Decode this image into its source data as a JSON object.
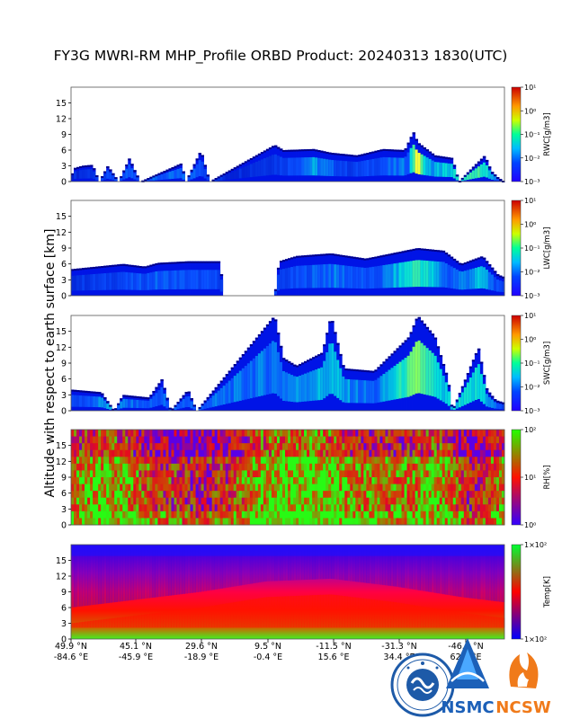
{
  "title": "FY3G MWRI-RM MHP_Profile ORBD Product: 20240313 1830(UTC)",
  "y_axis_label": "Altitude with respect to earth surface [km]",
  "y_ticks": [
    "0",
    "3",
    "6",
    "9",
    "12",
    "15"
  ],
  "x_ticks": [
    {
      "lat": "49.9 °N",
      "lon": "-84.6 °E"
    },
    {
      "lat": "45.1 °N",
      "lon": "-45.9 °E"
    },
    {
      "lat": "29.6 °N",
      "lon": "-18.9 °E"
    },
    {
      "lat": "9.5 °N",
      "lon": "-0.4 °E"
    },
    {
      "lat": "-11.5 °N",
      "lon": "15.6 °E"
    },
    {
      "lat": "-31.3 °N",
      "lon": "34.4 °E"
    },
    {
      "lat": "-46.2 °N",
      "lon": "62.4 °E"
    }
  ],
  "colors": {
    "water_low": "#1a1aff",
    "water_mid": "#00e5e5",
    "water_high": "#ffff33",
    "rh_low": "#4400ff",
    "rh_mid": "#ff2200",
    "rh_high": "#33ff00",
    "temp_low": "#0000ff",
    "temp_mid": "#ff0000",
    "temp_high": "#00ff33"
  },
  "chart_data": [
    {
      "type": "heatmap",
      "quantity": "RWC",
      "colorbar_label": "RWC[g/m3]",
      "colorbar_ticks": [
        "10¹",
        "10⁰",
        "10⁻¹",
        "10⁻²",
        "10⁻³"
      ],
      "scale": "log",
      "clim": [
        0.001,
        10
      ],
      "ylim": [
        0,
        18
      ],
      "profile": [
        {
          "x": 0.0,
          "top": 0
        },
        {
          "x": 0.005,
          "top": 2.5
        },
        {
          "x": 0.025,
          "top": 3.0
        },
        {
          "x": 0.05,
          "top": 3.2
        },
        {
          "x": 0.065,
          "top": 0
        },
        {
          "x": 0.085,
          "top": 3.0
        },
        {
          "x": 0.11,
          "top": 0
        },
        {
          "x": 0.135,
          "top": 4.5
        },
        {
          "x": 0.145,
          "top": 2.5
        },
        {
          "x": 0.16,
          "top": 0
        },
        {
          "x": 0.255,
          "top": 3.5
        },
        {
          "x": 0.265,
          "top": 0
        },
        {
          "x": 0.3,
          "top": 6.0
        },
        {
          "x": 0.32,
          "top": 0
        },
        {
          "x": 0.47,
          "top": 7.0
        },
        {
          "x": 0.49,
          "top": 6.0
        },
        {
          "x": 0.56,
          "top": 6.2
        },
        {
          "x": 0.6,
          "top": 5.5
        },
        {
          "x": 0.66,
          "top": 5.0
        },
        {
          "x": 0.72,
          "top": 6.2
        },
        {
          "x": 0.77,
          "top": 6.0
        },
        {
          "x": 0.79,
          "top": 9.5
        },
        {
          "x": 0.8,
          "top": 7.5
        },
        {
          "x": 0.84,
          "top": 5.0
        },
        {
          "x": 0.88,
          "top": 4.5
        },
        {
          "x": 0.895,
          "top": 0
        },
        {
          "x": 0.93,
          "top": 3.0
        },
        {
          "x": 0.955,
          "top": 5.0
        },
        {
          "x": 0.97,
          "top": 2.0
        },
        {
          "x": 0.985,
          "top": 0.8
        },
        {
          "x": 1.0,
          "top": 0
        }
      ],
      "intensity": [
        {
          "x": 0.0,
          "v": 0.1
        },
        {
          "x": 0.13,
          "v": 0.3
        },
        {
          "x": 0.3,
          "v": 0.3
        },
        {
          "x": 0.36,
          "v": 0.1
        },
        {
          "x": 0.48,
          "v": 0.2
        },
        {
          "x": 0.56,
          "v": 0.4
        },
        {
          "x": 0.64,
          "v": 0.2
        },
        {
          "x": 0.78,
          "v": 0.35
        },
        {
          "x": 0.8,
          "v": 0.9
        },
        {
          "x": 0.82,
          "v": 0.4
        },
        {
          "x": 0.95,
          "v": 0.6
        },
        {
          "x": 1.0,
          "v": 0.1
        }
      ]
    },
    {
      "type": "heatmap",
      "quantity": "LWC",
      "colorbar_label": "LWC[g/m3]",
      "colorbar_ticks": [
        "10¹",
        "10⁰",
        "10⁻¹",
        "10⁻²",
        "10⁻³"
      ],
      "scale": "log",
      "clim": [
        0.001,
        10
      ],
      "ylim": [
        0,
        18
      ],
      "profile": [
        {
          "x": 0.0,
          "top": 5.0
        },
        {
          "x": 0.06,
          "top": 5.5
        },
        {
          "x": 0.12,
          "top": 6.0
        },
        {
          "x": 0.17,
          "top": 5.5
        },
        {
          "x": 0.2,
          "top": 6.2
        },
        {
          "x": 0.27,
          "top": 6.5
        },
        {
          "x": 0.345,
          "top": 6.5
        },
        {
          "x": 0.35,
          "top": 0
        },
        {
          "x": 0.47,
          "top": 0
        },
        {
          "x": 0.48,
          "top": 6.5
        },
        {
          "x": 0.52,
          "top": 7.5
        },
        {
          "x": 0.6,
          "top": 8.0
        },
        {
          "x": 0.68,
          "top": 7.0
        },
        {
          "x": 0.74,
          "top": 8.0
        },
        {
          "x": 0.8,
          "top": 9.0
        },
        {
          "x": 0.86,
          "top": 8.5
        },
        {
          "x": 0.9,
          "top": 6.0
        },
        {
          "x": 0.95,
          "top": 7.5
        },
        {
          "x": 0.985,
          "top": 4.0
        },
        {
          "x": 1.0,
          "top": 3.5
        }
      ],
      "intensity": [
        {
          "x": 0.0,
          "v": 0.15
        },
        {
          "x": 0.2,
          "v": 0.3
        },
        {
          "x": 0.33,
          "v": 0.25
        },
        {
          "x": 0.48,
          "v": 0.2
        },
        {
          "x": 0.6,
          "v": 0.35
        },
        {
          "x": 0.7,
          "v": 0.25
        },
        {
          "x": 0.8,
          "v": 0.6
        },
        {
          "x": 0.87,
          "v": 0.3
        },
        {
          "x": 0.95,
          "v": 0.45
        },
        {
          "x": 1.0,
          "v": 0.15
        }
      ]
    },
    {
      "type": "heatmap",
      "quantity": "SWC",
      "colorbar_label": "SWC[g/m3]",
      "colorbar_ticks": [
        "10¹",
        "10⁰",
        "10⁻¹",
        "10⁻²",
        "10⁻³"
      ],
      "scale": "log",
      "clim": [
        0.001,
        10
      ],
      "ylim": [
        0,
        18
      ],
      "profile": [
        {
          "x": 0.0,
          "top": 4.0
        },
        {
          "x": 0.07,
          "top": 3.5
        },
        {
          "x": 0.1,
          "top": 0
        },
        {
          "x": 0.12,
          "top": 3.0
        },
        {
          "x": 0.18,
          "top": 2.5
        },
        {
          "x": 0.21,
          "top": 6.0
        },
        {
          "x": 0.23,
          "top": 0
        },
        {
          "x": 0.27,
          "top": 4.0
        },
        {
          "x": 0.29,
          "top": 0
        },
        {
          "x": 0.47,
          "top": 18
        },
        {
          "x": 0.49,
          "top": 10
        },
        {
          "x": 0.52,
          "top": 8.5
        },
        {
          "x": 0.58,
          "top": 11
        },
        {
          "x": 0.6,
          "top": 18
        },
        {
          "x": 0.63,
          "top": 8.0
        },
        {
          "x": 0.7,
          "top": 7.5
        },
        {
          "x": 0.78,
          "top": 14
        },
        {
          "x": 0.8,
          "top": 18
        },
        {
          "x": 0.84,
          "top": 14
        },
        {
          "x": 0.87,
          "top": 6.0
        },
        {
          "x": 0.88,
          "top": 0
        },
        {
          "x": 0.94,
          "top": 12
        },
        {
          "x": 0.96,
          "top": 4.0
        },
        {
          "x": 0.98,
          "top": 2.0
        },
        {
          "x": 1.0,
          "top": 1.5
        }
      ],
      "intensity": [
        {
          "x": 0.0,
          "v": 0.2
        },
        {
          "x": 0.08,
          "v": 0.4
        },
        {
          "x": 0.15,
          "v": 0.3
        },
        {
          "x": 0.48,
          "v": 0.35
        },
        {
          "x": 0.6,
          "v": 0.45
        },
        {
          "x": 0.7,
          "v": 0.3
        },
        {
          "x": 0.8,
          "v": 0.7
        },
        {
          "x": 0.85,
          "v": 0.45
        },
        {
          "x": 0.95,
          "v": 0.5
        },
        {
          "x": 1.0,
          "v": 0.2
        }
      ]
    },
    {
      "type": "heatmap",
      "quantity": "RH",
      "colorbar_label": "RH[%]",
      "colorbar_ticks": [
        "10²",
        "10¹",
        "10⁰"
      ],
      "scale": "log",
      "clim": [
        1,
        100
      ],
      "ylim": [
        0,
        18
      ],
      "column_moisture": [
        {
          "x": 0.0,
          "v": 0.6
        },
        {
          "x": 0.1,
          "v": 0.7
        },
        {
          "x": 0.2,
          "v": 0.4
        },
        {
          "x": 0.3,
          "v": 0.3
        },
        {
          "x": 0.35,
          "v": 0.35
        },
        {
          "x": 0.45,
          "v": 0.75
        },
        {
          "x": 0.55,
          "v": 0.85
        },
        {
          "x": 0.65,
          "v": 0.6
        },
        {
          "x": 0.75,
          "v": 0.55
        },
        {
          "x": 0.85,
          "v": 0.7
        },
        {
          "x": 0.93,
          "v": 0.25
        },
        {
          "x": 1.0,
          "v": 0.65
        }
      ]
    },
    {
      "type": "heatmap",
      "quantity": "Temp",
      "colorbar_label": "Temp[K]",
      "colorbar_ticks": [
        "1×10²",
        "1×10²"
      ],
      "scale": "linear",
      "ylim": [
        0,
        18
      ],
      "warm_layer_top": [
        {
          "x": 0.0,
          "km": 3.0
        },
        {
          "x": 0.15,
          "km": 4.5
        },
        {
          "x": 0.3,
          "km": 6.0
        },
        {
          "x": 0.45,
          "km": 8.0
        },
        {
          "x": 0.6,
          "km": 8.5
        },
        {
          "x": 0.75,
          "km": 7.0
        },
        {
          "x": 0.9,
          "km": 5.0
        },
        {
          "x": 1.0,
          "km": 4.0
        }
      ]
    }
  ],
  "logos": [
    {
      "name": "cma-seal"
    },
    {
      "name": "nsmc",
      "text": "NSMC"
    },
    {
      "name": "ncsw",
      "text": "NCSW"
    }
  ]
}
